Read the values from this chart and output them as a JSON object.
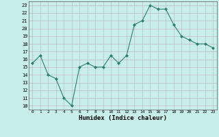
{
  "x": [
    0,
    1,
    2,
    3,
    4,
    5,
    6,
    7,
    8,
    9,
    10,
    11,
    12,
    13,
    14,
    15,
    16,
    17,
    18,
    19,
    20,
    21,
    22,
    23
  ],
  "y": [
    15.5,
    16.5,
    14,
    13.5,
    11,
    10,
    15,
    15.5,
    15,
    15,
    16.5,
    15.5,
    16.5,
    20.5,
    21,
    23,
    22.5,
    22.5,
    20.5,
    19,
    18.5,
    18,
    18,
    17.5
  ],
  "xlabel": "Humidex (Indice chaleur)",
  "ylim": [
    10,
    23
  ],
  "xlim": [
    0,
    23
  ],
  "line_color": "#2d7d6b",
  "bg_color": "#c8eeea",
  "grid_color": "#c0b8c8",
  "yticks": [
    10,
    11,
    12,
    13,
    14,
    15,
    16,
    17,
    18,
    19,
    20,
    21,
    22,
    23
  ],
  "xticks": [
    0,
    1,
    2,
    3,
    4,
    5,
    6,
    7,
    8,
    9,
    10,
    11,
    12,
    13,
    14,
    15,
    16,
    17,
    18,
    19,
    20,
    21,
    22,
    23
  ]
}
